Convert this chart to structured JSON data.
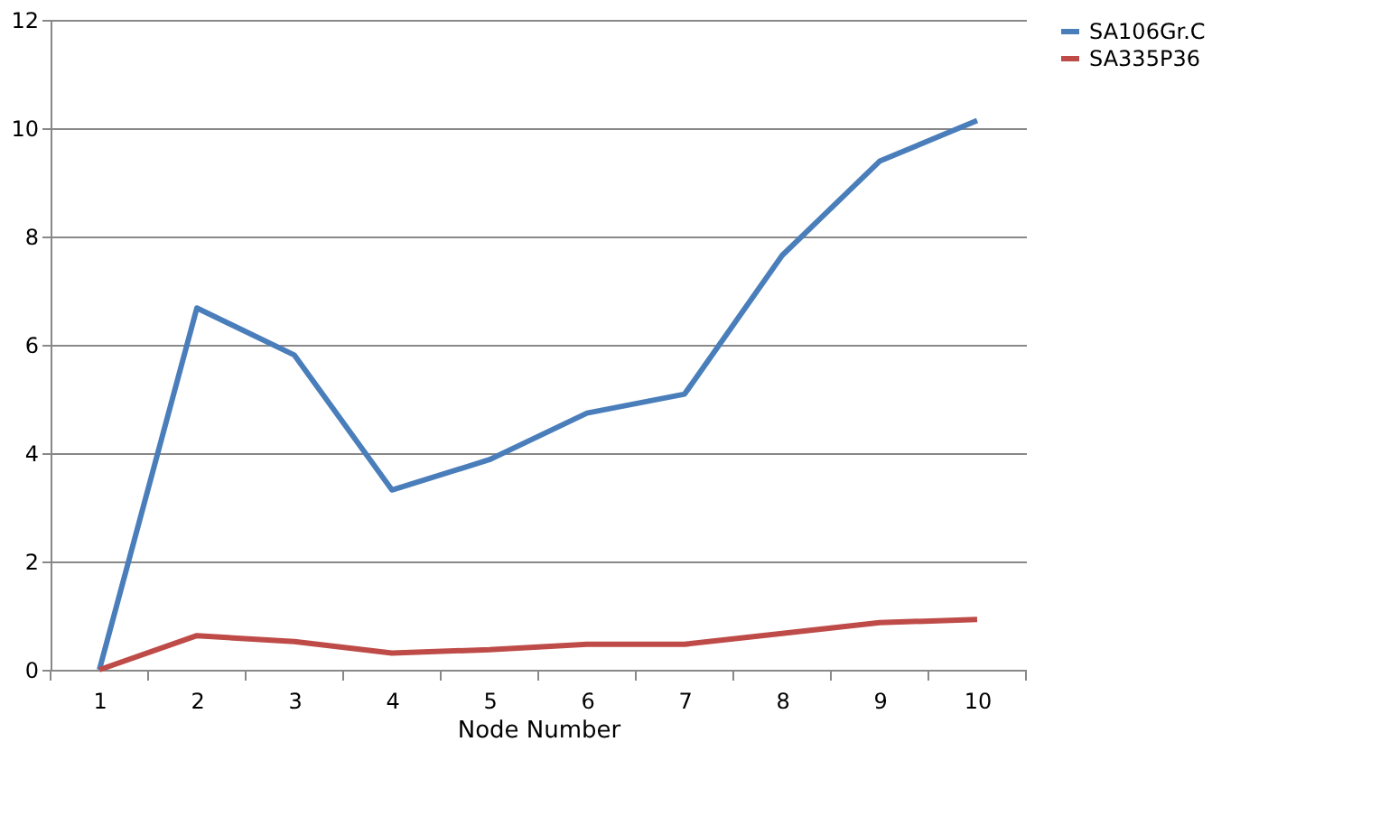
{
  "chart_data": {
    "type": "line",
    "xlabel": "Node Number",
    "categories": [
      "1",
      "2",
      "3",
      "4",
      "5",
      "6",
      "7",
      "8",
      "9",
      "10"
    ],
    "series": [
      {
        "name": "SA106Gr.C",
        "color": "#4a7ebb",
        "values": [
          0,
          6.68,
          5.81,
          3.32,
          3.88,
          4.74,
          5.09,
          7.65,
          9.39,
          10.14
        ]
      },
      {
        "name": "SA335P36",
        "color": "#be4b48",
        "values": [
          0,
          0.63,
          0.52,
          0.31,
          0.37,
          0.47,
          0.47,
          0.67,
          0.87,
          0.93
        ]
      }
    ],
    "ylim": [
      0,
      12
    ],
    "yticks": [
      0,
      2,
      4,
      6,
      8,
      10,
      12
    ],
    "grid": "y",
    "legend": "right",
    "marker": "none",
    "line_style": "solid"
  }
}
